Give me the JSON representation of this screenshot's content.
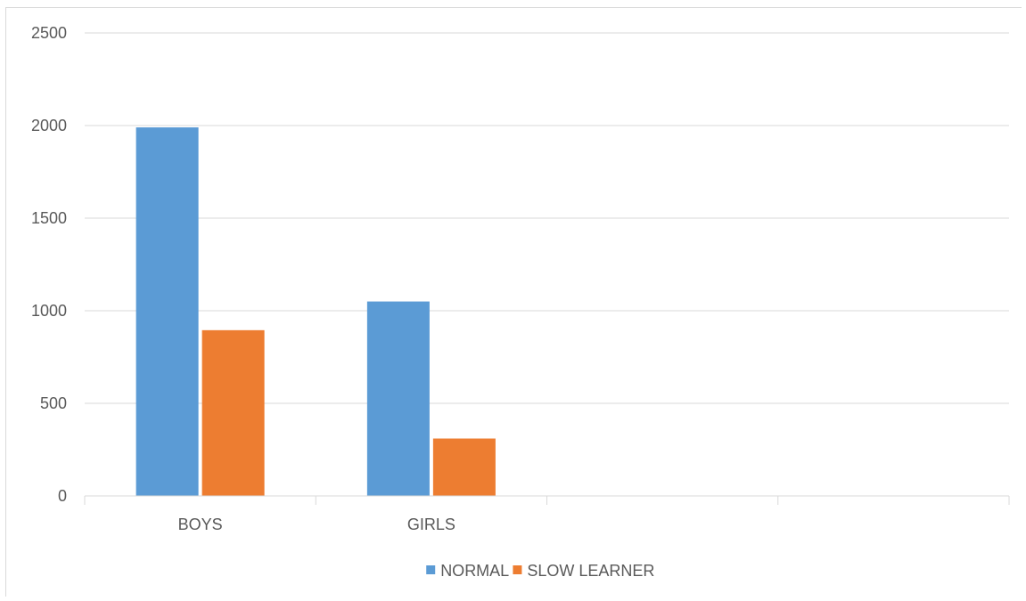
{
  "chart_data": {
    "type": "bar",
    "title": "",
    "xlabel": "",
    "ylabel": "",
    "categories": [
      "BOYS",
      "GIRLS",
      "",
      ""
    ],
    "series": [
      {
        "name": "NORMAL",
        "color": "#5b9bd5",
        "values": [
          1990,
          1050,
          null,
          null
        ]
      },
      {
        "name": "SLOW LEARNER",
        "color": "#ed7d31",
        "values": [
          895,
          310,
          null,
          null
        ]
      }
    ],
    "ylim": [
      0,
      2500
    ],
    "yticks": [
      0,
      500,
      1000,
      1500,
      2000,
      2500
    ],
    "grid": true,
    "legend_position": "bottom"
  }
}
